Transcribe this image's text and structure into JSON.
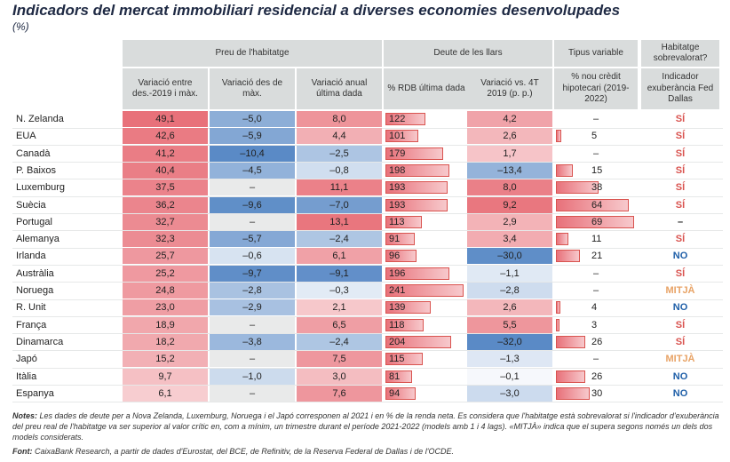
{
  "title": "Indicadors del mercat immobiliari residencial a diverses economies desenvolupades",
  "subtitle": "(%)",
  "chart_data": {
    "type": "table",
    "group_headers": [
      "Preu de l'habitatge",
      "Deute de les llars",
      "Tipus variable",
      "Habitatge sobrevalorat?"
    ],
    "column_headers": [
      "Variació entre des.-2019 i màx.",
      "Variació des de màx.",
      "Variació anual última dada",
      "% RDB última dada",
      "Variació vs. 4T 2019 (p. p.)",
      "% nou crèdit hipotecari (2019-2022)",
      "Indicador exuberància Fed Dallas"
    ],
    "rows": [
      {
        "country": "N. Zelanda",
        "var_max": "49,1",
        "var_desde_max": "–5,0",
        "var_anual": "8,0",
        "rdb": "122",
        "var_4t": "4,2",
        "tipus": "–",
        "sobre": "SÍ"
      },
      {
        "country": "EUA",
        "var_max": "42,6",
        "var_desde_max": "–5,9",
        "var_anual": "4,4",
        "rdb": "101",
        "var_4t": "2,6",
        "tipus": "5",
        "sobre": "SÍ"
      },
      {
        "country": "Canadà",
        "var_max": "41,2",
        "var_desde_max": "–10,4",
        "var_anual": "–2,5",
        "rdb": "179",
        "var_4t": "1,7",
        "tipus": "–",
        "sobre": "SÍ"
      },
      {
        "country": "P. Baixos",
        "var_max": "40,4",
        "var_desde_max": "–4,5",
        "var_anual": "–0,8",
        "rdb": "198",
        "var_4t": "–13,4",
        "tipus": "15",
        "sobre": "SÍ"
      },
      {
        "country": "Luxemburg",
        "var_max": "37,5",
        "var_desde_max": "–",
        "var_anual": "11,1",
        "rdb": "193",
        "var_4t": "8,0",
        "tipus": "38",
        "sobre": "SÍ"
      },
      {
        "country": "Suècia",
        "var_max": "36,2",
        "var_desde_max": "–9,6",
        "var_anual": "–7,0",
        "rdb": "193",
        "var_4t": "9,2",
        "tipus": "64",
        "sobre": "SÍ"
      },
      {
        "country": "Portugal",
        "var_max": "32,7",
        "var_desde_max": "–",
        "var_anual": "13,1",
        "rdb": "113",
        "var_4t": "2,9",
        "tipus": "69",
        "sobre": "–"
      },
      {
        "country": "Alemanya",
        "var_max": "32,3",
        "var_desde_max": "–5,7",
        "var_anual": "–2,4",
        "rdb": "91",
        "var_4t": "3,4",
        "tipus": "11",
        "sobre": "SÍ"
      },
      {
        "country": "Irlanda",
        "var_max": "25,7",
        "var_desde_max": "–0,6",
        "var_anual": "6,1",
        "rdb": "96",
        "var_4t": "–30,0",
        "tipus": "21",
        "sobre": "NO"
      },
      {
        "country": "Austràlia",
        "var_max": "25,2",
        "var_desde_max": "–9,7",
        "var_anual": "–9,1",
        "rdb": "196",
        "var_4t": "–1,1",
        "tipus": "–",
        "sobre": "SÍ"
      },
      {
        "country": "Noruega",
        "var_max": "24,8",
        "var_desde_max": "–2,8",
        "var_anual": "–0,3",
        "rdb": "241",
        "var_4t": "–2,8",
        "tipus": "–",
        "sobre": "MITJÀ"
      },
      {
        "country": "R. Unit",
        "var_max": "23,0",
        "var_desde_max": "–2,9",
        "var_anual": "2,1",
        "rdb": "139",
        "var_4t": "2,6",
        "tipus": "4",
        "sobre": "NO"
      },
      {
        "country": "França",
        "var_max": "18,9",
        "var_desde_max": "–",
        "var_anual": "6,5",
        "rdb": "118",
        "var_4t": "5,5",
        "tipus": "3",
        "sobre": "SÍ"
      },
      {
        "country": "Dinamarca",
        "var_max": "18,2",
        "var_desde_max": "–3,8",
        "var_anual": "–2,4",
        "rdb": "204",
        "var_4t": "–32,0",
        "tipus": "26",
        "sobre": "SÍ"
      },
      {
        "country": "Japó",
        "var_max": "15,2",
        "var_desde_max": "–",
        "var_anual": "7,5",
        "rdb": "115",
        "var_4t": "–1,3",
        "tipus": "–",
        "sobre": "MITJÀ"
      },
      {
        "country": "Itàlia",
        "var_max": "9,7",
        "var_desde_max": "–1,0",
        "var_anual": "3,0",
        "rdb": "81",
        "var_4t": "–0,1",
        "tipus": "26",
        "sobre": "NO"
      },
      {
        "country": "Espanya",
        "var_max": "6,1",
        "var_desde_max": "–",
        "var_anual": "7,6",
        "rdb": "94",
        "var_4t": "–3,0",
        "tipus": "30",
        "sobre": "NO"
      }
    ]
  },
  "notes_label": "Notes:",
  "notes_text": "Les dades de deute per a Nova Zelanda, Luxemburg, Noruega i el Japó corresponen al 2021 i en % de la renda neta. Es considera que l'habitatge està sobrevalorat si l'indicador d'exuberància del preu real de l'habitatge va ser superior al valor crític en, com a mínim, un trimestre durant el període 2021-2022 (models amb 1 i 4 lags). «MITJÀ» indica que el supera segons només un dels dos models considerats.",
  "source_label": "Font:",
  "source_text": "CaixaBank Research, a partir de dades d'Eurostat, del BCE, de Refinitiv, de la Reserva Federal de Dallas i de l'OCDE.",
  "colors": {
    "red": "#e8717a",
    "blue": "#5a8ac6",
    "verdict_red": "#d9534f",
    "verdict_blue": "#1f5fa8",
    "verdict_orange": "#e8a366"
  }
}
